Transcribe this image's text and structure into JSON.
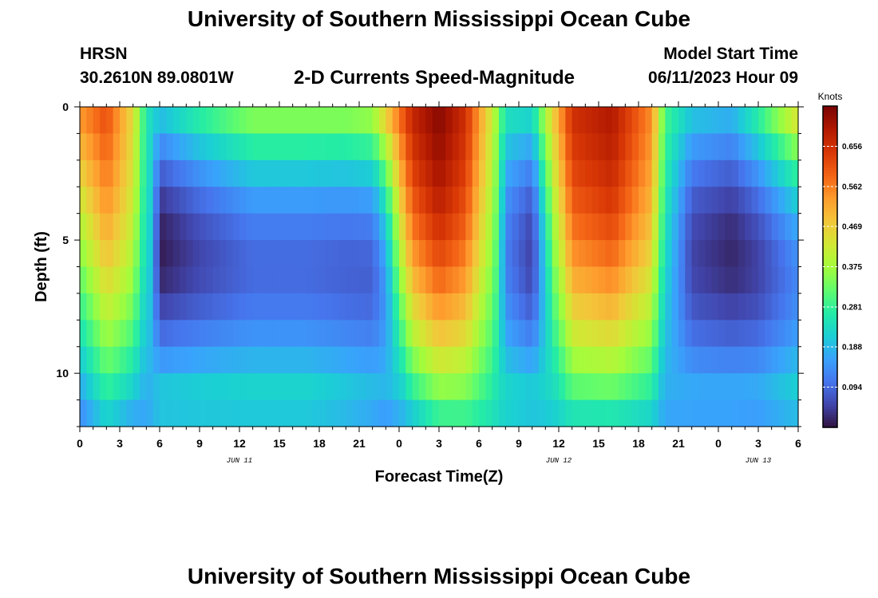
{
  "header": {
    "title": "University of Southern Mississippi Ocean Cube",
    "station_name": "HRSN",
    "station_coords": "30.2610N  89.0801W",
    "chart_title": "2-D Currents Speed-Magnitude",
    "model_start_label": "Model Start Time",
    "model_start_value": "06/11/2023 Hour 09"
  },
  "footer": {
    "title": "University of Southern Mississippi Ocean Cube"
  },
  "chart_data": {
    "type": "heatmap",
    "title": "2-D Currents Speed-Magnitude",
    "xlabel": "Forecast Time(Z)",
    "ylabel": "Depth (ft)",
    "x_ticks": [
      "0",
      "3",
      "6",
      "9",
      "12",
      "15",
      "18",
      "21",
      "0",
      "3",
      "6",
      "9",
      "12",
      "15",
      "18",
      "21",
      "0",
      "3",
      "6"
    ],
    "x_range_hours": [
      0,
      54
    ],
    "date_labels": [
      {
        "text": "JUN 11",
        "hour": 12
      },
      {
        "text": "JUN 12",
        "hour": 36
      },
      {
        "text": "JUN 13",
        "hour": 51
      }
    ],
    "y_ticks": [
      "0",
      "5",
      "10"
    ],
    "y_range_ft": [
      0,
      12
    ],
    "depth_levels_ft": [
      0.5,
      1.5,
      2.5,
      3.5,
      4.5,
      5.5,
      6.5,
      7.5,
      8.5,
      9.5,
      10.5,
      11.5
    ],
    "colorbar": {
      "title": "Knots",
      "range": [
        0,
        0.75
      ],
      "tick_values": [
        0.094,
        0.188,
        0.281,
        0.375,
        0.469,
        0.562,
        0.656
      ],
      "tick_labels": [
        "0.094",
        "0.188",
        "0.281",
        "0.375",
        "0.469",
        "0.562",
        "0.656"
      ],
      "colors": [
        "#30123b",
        "#4145ab",
        "#4675ed",
        "#39a2fc",
        "#1bcfd4",
        "#24eca6",
        "#61fc6c",
        "#a4fc3b",
        "#d1e834",
        "#f3c63a",
        "#fe9b2d",
        "#f36315",
        "#d93806",
        "#b11901",
        "#7a0403"
      ]
    },
    "speed_profiles_knots": [
      {
        "hour": 0,
        "surface": 0.55,
        "bottom": 0.12,
        "shape": 0.0
      },
      {
        "hour": 2,
        "surface": 0.62,
        "bottom": 0.2,
        "shape": 0.5
      },
      {
        "hour": 4,
        "surface": 0.45,
        "bottom": 0.15,
        "shape": 0.9
      },
      {
        "hour": 5,
        "surface": 0.25,
        "bottom": 0.16,
        "shape": 0.6
      },
      {
        "hour": 6,
        "surface": 0.22,
        "bottom": 0.2,
        "shape": -1.0
      },
      {
        "hour": 9,
        "surface": 0.3,
        "bottom": 0.2,
        "shape": -1.0
      },
      {
        "hour": 13,
        "surface": 0.38,
        "bottom": 0.2,
        "shape": -1.0
      },
      {
        "hour": 17,
        "surface": 0.38,
        "bottom": 0.2,
        "shape": -1.0
      },
      {
        "hour": 20,
        "surface": 0.38,
        "bottom": 0.18,
        "shape": -1.0
      },
      {
        "hour": 22,
        "surface": 0.4,
        "bottom": 0.16,
        "shape": -1.0
      },
      {
        "hour": 23,
        "surface": 0.5,
        "bottom": 0.14,
        "shape": -0.8
      },
      {
        "hour": 25,
        "surface": 0.68,
        "bottom": 0.18,
        "shape": 0.6
      },
      {
        "hour": 27,
        "surface": 0.74,
        "bottom": 0.25,
        "shape": 0.8
      },
      {
        "hour": 29,
        "surface": 0.66,
        "bottom": 0.26,
        "shape": 0.8
      },
      {
        "hour": 31,
        "surface": 0.42,
        "bottom": 0.24,
        "shape": 0.4
      },
      {
        "hour": 32,
        "surface": 0.26,
        "bottom": 0.22,
        "shape": -0.6
      },
      {
        "hour": 34,
        "surface": 0.25,
        "bottom": 0.2,
        "shape": -0.9
      },
      {
        "hour": 35,
        "surface": 0.4,
        "bottom": 0.2,
        "shape": -0.4
      },
      {
        "hour": 37,
        "surface": 0.66,
        "bottom": 0.22,
        "shape": 0.7
      },
      {
        "hour": 40,
        "surface": 0.7,
        "bottom": 0.22,
        "shape": 0.8
      },
      {
        "hour": 43,
        "surface": 0.55,
        "bottom": 0.2,
        "shape": 0.7
      },
      {
        "hour": 44,
        "surface": 0.3,
        "bottom": 0.16,
        "shape": 0.0
      },
      {
        "hour": 46,
        "surface": 0.22,
        "bottom": 0.16,
        "shape": -0.7
      },
      {
        "hour": 49,
        "surface": 0.2,
        "bottom": 0.16,
        "shape": -0.8
      },
      {
        "hour": 51,
        "surface": 0.3,
        "bottom": 0.15,
        "shape": -0.9
      },
      {
        "hour": 54,
        "surface": 0.48,
        "bottom": 0.18,
        "shape": -1.0
      }
    ]
  }
}
